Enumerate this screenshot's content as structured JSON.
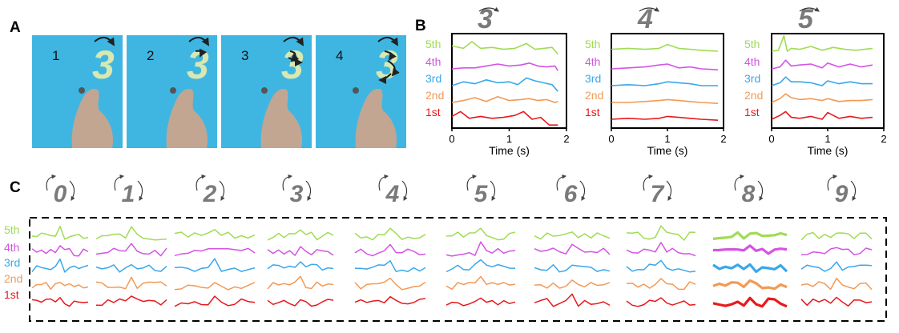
{
  "panels": {
    "a": "A",
    "b": "B",
    "c": "C"
  },
  "colors": {
    "5th": "#9fdc54",
    "4th": "#d354e3",
    "3rd": "#39a7ea",
    "2nd": "#f29a55",
    "1st": "#e8191b"
  },
  "panel_a": {
    "frame_numbers": [
      "1",
      "2",
      "3",
      "4"
    ],
    "written_digit": "3"
  },
  "chart_data": [
    {
      "type": "line",
      "panel": "B",
      "title_digit": "3",
      "xlabel": "Time (s)",
      "xticks": [
        "0",
        "1",
        "2"
      ],
      "xlim": [
        0,
        2
      ],
      "series": [
        {
          "name": "5th",
          "x": [
            0,
            0.2,
            0.35,
            0.5,
            0.7,
            0.9,
            1.1,
            1.3,
            1.45,
            1.6,
            1.75,
            1.85
          ],
          "y": [
            0.55,
            0.3,
            1.0,
            0.3,
            0.4,
            0.2,
            0.3,
            0.8,
            0.2,
            0.3,
            0.4,
            -0.3
          ]
        },
        {
          "name": "4th",
          "x": [
            0,
            0.2,
            0.4,
            0.6,
            0.8,
            1.0,
            1.2,
            1.35,
            1.5,
            1.65,
            1.8,
            1.85
          ],
          "y": [
            0,
            0.1,
            0.1,
            0.3,
            0.5,
            0.3,
            0.4,
            0.6,
            0.3,
            0.2,
            0.3,
            -0.2
          ]
        },
        {
          "name": "3rd",
          "x": [
            0,
            0.2,
            0.4,
            0.6,
            0.8,
            1.0,
            1.15,
            1.3,
            1.45,
            1.6,
            1.75,
            1.85
          ],
          "y": [
            0,
            0.4,
            0.2,
            0.6,
            0.3,
            0.4,
            0.1,
            0.8,
            0.5,
            0.3,
            0.1,
            -0.6
          ]
        },
        {
          "name": "2nd",
          "x": [
            0,
            0.2,
            0.4,
            0.6,
            0.8,
            1.0,
            1.2,
            1.35,
            1.5,
            1.65,
            1.8,
            1.85
          ],
          "y": [
            0,
            0.2,
            0.5,
            0.1,
            0.6,
            0.2,
            0.3,
            0.4,
            0.2,
            0.3,
            0.0,
            0.1
          ]
        },
        {
          "name": "1st",
          "x": [
            0,
            0.15,
            0.3,
            0.5,
            0.7,
            0.9,
            1.1,
            1.25,
            1.4,
            1.55,
            1.7,
            1.85
          ],
          "y": [
            0.3,
            0.8,
            0.1,
            0.3,
            0.1,
            0.2,
            0.4,
            0.8,
            0.0,
            0.2,
            -0.6,
            -0.6
          ]
        }
      ]
    },
    {
      "type": "line",
      "panel": "B",
      "title_digit": "4",
      "xlabel": "Time (s)",
      "xticks": [
        "0",
        "1",
        "2"
      ],
      "xlim": [
        0,
        2
      ],
      "series": [
        {
          "name": "5th",
          "x": [
            0,
            0.3,
            0.6,
            0.85,
            1.0,
            1.2,
            1.4,
            1.6,
            1.9
          ],
          "y": [
            0.2,
            0.3,
            0.2,
            0.3,
            0.7,
            0.3,
            0.2,
            0.1,
            0.0
          ]
        },
        {
          "name": "4th",
          "x": [
            0,
            0.3,
            0.6,
            0.85,
            1.0,
            1.2,
            1.4,
            1.6,
            1.9
          ],
          "y": [
            0.0,
            0.1,
            0.2,
            0.4,
            0.5,
            0.1,
            0.2,
            0.0,
            -0.1
          ]
        },
        {
          "name": "3rd",
          "x": [
            0,
            0.3,
            0.6,
            0.85,
            1.0,
            1.2,
            1.4,
            1.6,
            1.9
          ],
          "y": [
            0.0,
            0.1,
            0.0,
            0.2,
            0.4,
            0.3,
            0.2,
            0.0,
            0.0
          ]
        },
        {
          "name": "2nd",
          "x": [
            0,
            0.3,
            0.6,
            0.85,
            1.0,
            1.2,
            1.4,
            1.6,
            1.9
          ],
          "y": [
            0.0,
            0.0,
            0.1,
            0.2,
            0.3,
            0.2,
            0.1,
            0.0,
            -0.1
          ]
        },
        {
          "name": "1st",
          "x": [
            0,
            0.3,
            0.6,
            0.85,
            1.0,
            1.2,
            1.4,
            1.6,
            1.9
          ],
          "y": [
            0.0,
            0.1,
            0.0,
            0.1,
            0.3,
            0.2,
            0.1,
            0.0,
            -0.1
          ]
        }
      ]
    },
    {
      "type": "line",
      "panel": "B",
      "title_digit": "5",
      "xlabel": "Time (s)",
      "xticks": [
        "0",
        "1",
        "2"
      ],
      "xlim": [
        0,
        2
      ],
      "series": [
        {
          "name": "5th",
          "x": [
            0,
            0.12,
            0.22,
            0.28,
            0.35,
            0.5,
            0.7,
            0.9,
            1.1,
            1.3,
            1.5,
            1.8
          ],
          "y": [
            0.0,
            0.1,
            1.6,
            0.0,
            0.3,
            0.2,
            0.5,
            0.1,
            0.4,
            0.2,
            0.1,
            0.3
          ]
        },
        {
          "name": "4th",
          "x": [
            0,
            0.15,
            0.25,
            0.35,
            0.5,
            0.7,
            0.9,
            1.0,
            1.2,
            1.4,
            1.6,
            1.8
          ],
          "y": [
            0.0,
            0.2,
            0.9,
            0.3,
            0.4,
            0.5,
            0.1,
            0.6,
            0.2,
            0.5,
            0.2,
            0.4
          ]
        },
        {
          "name": "3rd",
          "x": [
            0,
            0.15,
            0.25,
            0.35,
            0.5,
            0.7,
            0.9,
            1.0,
            1.2,
            1.4,
            1.6,
            1.8
          ],
          "y": [
            0.0,
            0.3,
            0.9,
            0.4,
            0.4,
            0.3,
            0.0,
            0.5,
            0.2,
            0.4,
            0.2,
            0.2
          ]
        },
        {
          "name": "2nd",
          "x": [
            0,
            0.15,
            0.25,
            0.35,
            0.5,
            0.7,
            0.9,
            1.0,
            1.2,
            1.4,
            1.6,
            1.8
          ],
          "y": [
            0.0,
            0.4,
            0.9,
            0.5,
            0.3,
            0.4,
            0.2,
            0.4,
            0.1,
            0.2,
            0.2,
            0.3
          ]
        },
        {
          "name": "1st",
          "x": [
            0,
            0.15,
            0.25,
            0.35,
            0.5,
            0.7,
            0.9,
            1.0,
            1.2,
            1.4,
            1.6,
            1.8
          ],
          "y": [
            0.0,
            0.4,
            0.8,
            0.2,
            0.1,
            0.3,
            0.0,
            0.7,
            0.1,
            0.3,
            0.1,
            0.2
          ]
        }
      ]
    },
    {
      "type": "line",
      "panel": "C",
      "digits": [
        "0",
        "1",
        "2",
        "3",
        "4",
        "5",
        "6",
        "7",
        "8",
        "9"
      ],
      "row_labels": [
        "5th",
        "4th",
        "3rd",
        "2nd",
        "1st"
      ]
    }
  ]
}
